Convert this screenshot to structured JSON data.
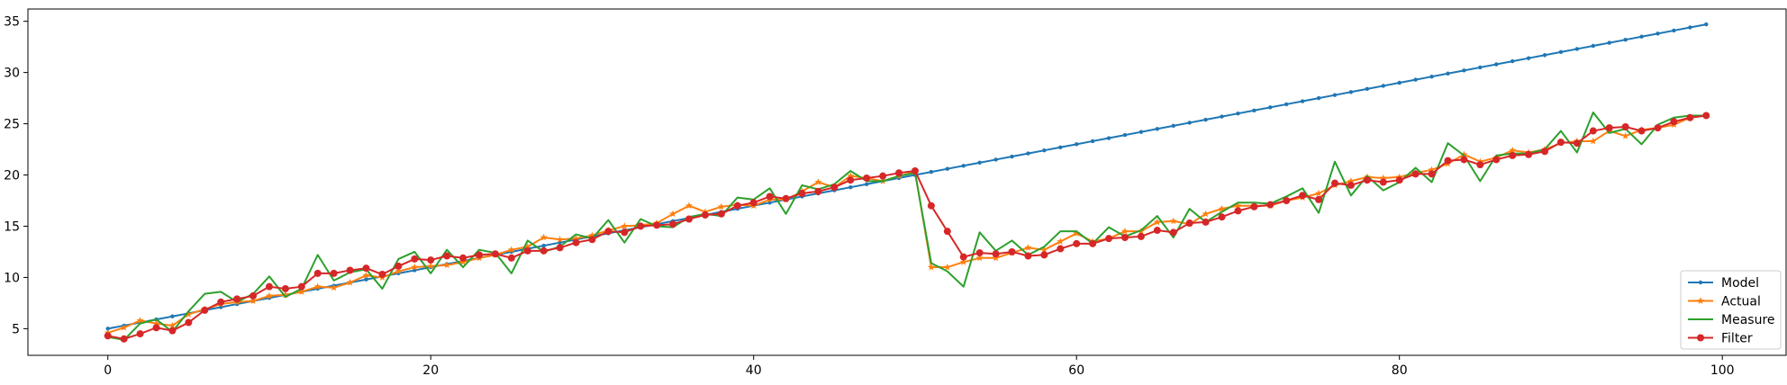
{
  "chart_data": {
    "type": "line",
    "title": "",
    "xlabel": "",
    "ylabel": "",
    "xlim": [
      -4.95,
      103.95
    ],
    "ylim": [
      2.4,
      36.2
    ],
    "xticks": [
      0,
      20,
      40,
      60,
      80,
      100
    ],
    "yticks": [
      5,
      10,
      15,
      20,
      25,
      30,
      35
    ],
    "grid": false,
    "legend_position": "lower-right",
    "series": [
      {
        "name": "Model",
        "color": "#1f77b4",
        "marker": "dot",
        "x": [
          0,
          1,
          2,
          3,
          4,
          5,
          6,
          7,
          8,
          9,
          10,
          11,
          12,
          13,
          14,
          15,
          16,
          17,
          18,
          19,
          20,
          21,
          22,
          23,
          24,
          25,
          26,
          27,
          28,
          29,
          30,
          31,
          32,
          33,
          34,
          35,
          36,
          37,
          38,
          39,
          40,
          41,
          42,
          43,
          44,
          45,
          46,
          47,
          48,
          49,
          50,
          51,
          52,
          53,
          54,
          55,
          56,
          57,
          58,
          59,
          60,
          61,
          62,
          63,
          64,
          65,
          66,
          67,
          68,
          69,
          70,
          71,
          72,
          73,
          74,
          75,
          76,
          77,
          78,
          79,
          80,
          81,
          82,
          83,
          84,
          85,
          86,
          87,
          88,
          89,
          90,
          91,
          92,
          93,
          94,
          95,
          96,
          97,
          98,
          99
        ],
        "values": [
          5.0,
          5.3,
          5.6,
          5.9,
          6.2,
          6.5,
          6.8,
          7.1,
          7.4,
          7.7,
          8.0,
          8.3,
          8.6,
          8.9,
          9.2,
          9.5,
          9.8,
          10.1,
          10.4,
          10.7,
          11.0,
          11.3,
          11.6,
          11.9,
          12.2,
          12.5,
          12.8,
          13.1,
          13.4,
          13.7,
          14.0,
          14.3,
          14.6,
          14.9,
          15.2,
          15.5,
          15.8,
          16.1,
          16.4,
          16.7,
          17.0,
          17.3,
          17.6,
          17.9,
          18.2,
          18.5,
          18.8,
          19.1,
          19.4,
          19.7,
          20.0,
          20.3,
          20.6,
          20.9,
          21.2,
          21.5,
          21.8,
          22.1,
          22.4,
          22.7,
          23.0,
          23.3,
          23.6,
          23.9,
          24.2,
          24.5,
          24.8,
          25.1,
          25.4,
          25.7,
          26.0,
          26.3,
          26.6,
          26.9,
          27.2,
          27.5,
          27.8,
          28.1,
          28.4,
          28.7,
          29.0,
          29.3,
          29.6,
          29.9,
          30.2,
          30.5,
          30.8,
          31.1,
          31.4,
          31.7,
          32.0,
          32.3,
          32.6,
          32.9,
          33.2,
          33.5,
          33.8,
          34.1,
          34.4,
          34.7
        ]
      },
      {
        "name": "Actual",
        "color": "#ff7f0e",
        "marker": "star",
        "x": [
          0,
          1,
          2,
          3,
          4,
          5,
          6,
          7,
          8,
          9,
          10,
          11,
          12,
          13,
          14,
          15,
          16,
          17,
          18,
          19,
          20,
          21,
          22,
          23,
          24,
          25,
          26,
          27,
          28,
          29,
          30,
          31,
          32,
          33,
          34,
          35,
          36,
          37,
          38,
          39,
          40,
          41,
          42,
          43,
          44,
          45,
          46,
          47,
          48,
          49,
          50,
          51,
          52,
          53,
          54,
          55,
          56,
          57,
          58,
          59,
          60,
          61,
          62,
          63,
          64,
          65,
          66,
          67,
          68,
          69,
          70,
          71,
          72,
          73,
          74,
          75,
          76,
          77,
          78,
          79,
          80,
          81,
          82,
          83,
          84,
          85,
          86,
          87,
          88,
          89,
          90,
          91,
          92,
          93,
          94,
          95,
          96,
          97,
          98,
          99
        ],
        "values": [
          4.6,
          5.1,
          5.8,
          5.5,
          5.3,
          6.4,
          6.9,
          7.4,
          7.6,
          7.7,
          8.2,
          8.3,
          8.6,
          9.1,
          9.0,
          9.5,
          10.2,
          10.0,
          10.6,
          11.0,
          11.1,
          11.2,
          11.5,
          11.9,
          12.2,
          12.7,
          13.0,
          13.9,
          13.7,
          13.8,
          14.1,
          14.6,
          15.0,
          15.1,
          15.3,
          16.2,
          17.0,
          16.4,
          16.9,
          17.1,
          17.0,
          17.6,
          17.6,
          18.4,
          19.3,
          18.8,
          19.9,
          19.7,
          19.4,
          19.9,
          20.3,
          11.0,
          11.0,
          11.5,
          11.9,
          11.9,
          12.4,
          12.9,
          12.7,
          13.5,
          14.3,
          13.5,
          13.8,
          14.5,
          14.5,
          15.4,
          15.5,
          15.2,
          16.2,
          16.7,
          17.0,
          17.0,
          17.0,
          17.5,
          17.8,
          18.2,
          19.0,
          19.4,
          19.8,
          19.7,
          19.8,
          20.2,
          20.5,
          21.1,
          22.0,
          21.3,
          21.7,
          22.4,
          22.2,
          22.5,
          23.1,
          23.3,
          23.3,
          24.3,
          23.8,
          24.4,
          24.6,
          24.9,
          25.6,
          25.8
        ]
      },
      {
        "name": "Measure",
        "color": "#2ca02c",
        "marker": "none",
        "x": [
          0,
          1,
          2,
          3,
          4,
          5,
          6,
          7,
          8,
          9,
          10,
          11,
          12,
          13,
          14,
          15,
          16,
          17,
          18,
          19,
          20,
          21,
          22,
          23,
          24,
          25,
          26,
          27,
          28,
          29,
          30,
          31,
          32,
          33,
          34,
          35,
          36,
          37,
          38,
          39,
          40,
          41,
          42,
          43,
          44,
          45,
          46,
          47,
          48,
          49,
          50,
          51,
          52,
          53,
          54,
          55,
          56,
          57,
          58,
          59,
          60,
          61,
          62,
          63,
          64,
          65,
          66,
          67,
          68,
          69,
          70,
          71,
          72,
          73,
          74,
          75,
          76,
          77,
          78,
          79,
          80,
          81,
          82,
          83,
          84,
          85,
          86,
          87,
          88,
          89,
          90,
          91,
          92,
          93,
          94,
          95,
          96,
          97,
          98,
          99
        ],
        "values": [
          4.2,
          3.9,
          5.5,
          5.9,
          4.7,
          6.7,
          8.4,
          8.6,
          7.6,
          8.4,
          10.1,
          8.1,
          8.9,
          12.2,
          9.7,
          10.5,
          10.8,
          8.9,
          11.8,
          12.5,
          10.4,
          12.7,
          11.0,
          12.7,
          12.4,
          10.4,
          13.6,
          12.5,
          13.0,
          14.2,
          13.8,
          15.6,
          13.4,
          15.7,
          15.0,
          14.9,
          15.9,
          16.2,
          16.0,
          17.8,
          17.6,
          18.7,
          16.2,
          19.0,
          18.6,
          19.1,
          20.4,
          19.4,
          19.4,
          19.9,
          20.2,
          11.4,
          10.6,
          9.1,
          14.4,
          12.6,
          13.6,
          12.2,
          13.0,
          14.5,
          14.5,
          13.3,
          14.9,
          14.0,
          14.6,
          16.0,
          13.9,
          16.7,
          15.4,
          16.4,
          17.3,
          17.3,
          17.2,
          17.9,
          18.7,
          16.3,
          21.3,
          18.0,
          19.9,
          18.5,
          19.3,
          20.7,
          19.3,
          23.1,
          21.9,
          19.4,
          21.9,
          22.1,
          22.1,
          22.5,
          24.3,
          22.2,
          26.1,
          24.1,
          24.5,
          23.0,
          24.9,
          25.6,
          25.8,
          25.8
        ]
      },
      {
        "name": "Filter",
        "color": "#d62728",
        "marker": "circle",
        "x": [
          0,
          1,
          2,
          3,
          4,
          5,
          6,
          7,
          8,
          9,
          10,
          11,
          12,
          13,
          14,
          15,
          16,
          17,
          18,
          19,
          20,
          21,
          22,
          23,
          24,
          25,
          26,
          27,
          28,
          29,
          30,
          31,
          32,
          33,
          34,
          35,
          36,
          37,
          38,
          39,
          40,
          41,
          42,
          43,
          44,
          45,
          46,
          47,
          48,
          49,
          50,
          51,
          52,
          53,
          54,
          55,
          56,
          57,
          58,
          59,
          60,
          61,
          62,
          63,
          64,
          65,
          66,
          67,
          68,
          69,
          70,
          71,
          72,
          73,
          74,
          75,
          76,
          77,
          78,
          79,
          80,
          81,
          82,
          83,
          84,
          85,
          86,
          87,
          88,
          89,
          90,
          91,
          92,
          93,
          94,
          95,
          96,
          97,
          98,
          99
        ],
        "values": [
          4.3,
          4.0,
          4.5,
          5.1,
          4.8,
          5.6,
          6.8,
          7.6,
          7.9,
          8.2,
          9.1,
          8.9,
          9.1,
          10.4,
          10.4,
          10.7,
          10.9,
          10.3,
          11.1,
          11.8,
          11.7,
          12.1,
          11.9,
          12.2,
          12.3,
          11.9,
          12.6,
          12.6,
          12.9,
          13.4,
          13.7,
          14.5,
          14.4,
          15.0,
          15.1,
          15.2,
          15.7,
          16.1,
          16.2,
          17.0,
          17.3,
          17.9,
          17.7,
          18.2,
          18.4,
          18.8,
          19.5,
          19.7,
          19.9,
          20.2,
          20.4,
          17.0,
          14.5,
          12.0,
          12.4,
          12.3,
          12.5,
          12.1,
          12.2,
          12.8,
          13.3,
          13.3,
          13.8,
          13.9,
          14.0,
          14.6,
          14.4,
          15.3,
          15.4,
          15.9,
          16.5,
          16.9,
          17.1,
          17.5,
          18.0,
          17.6,
          19.2,
          19.0,
          19.5,
          19.3,
          19.5,
          20.1,
          20.1,
          21.4,
          21.5,
          21.0,
          21.5,
          21.9,
          22.0,
          22.3,
          23.2,
          23.1,
          24.3,
          24.6,
          24.7,
          24.3,
          24.6,
          25.2,
          25.6,
          25.8
        ]
      }
    ]
  }
}
